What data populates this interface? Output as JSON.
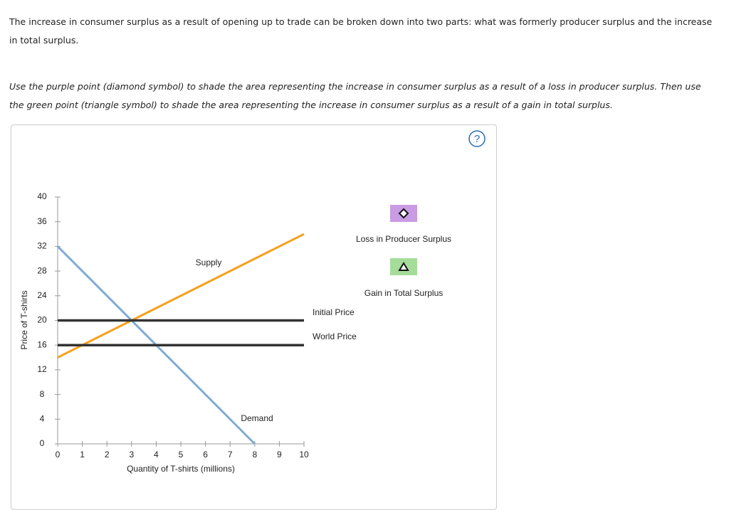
{
  "instructions": {
    "paragraph_1": "The increase in consumer surplus as a result of opening up to trade can be broken down into two parts: what was formerly producer surplus and the increase in total surplus.",
    "paragraph_2": "Use the purple point (diamond symbol) to shade the area representing the increase in consumer surplus as a result of a loss in producer surplus. Then use the green point (triangle symbol) to shade the area representing the increase in consumer surplus as a result of a gain in total surplus."
  },
  "help_icon": "?",
  "tools": [
    {
      "label": "Loss in Producer Surplus",
      "color": "#c99be3"
    },
    {
      "label": "Gain in Total Surplus",
      "color": "#a6dc9a"
    }
  ],
  "chart_data": {
    "type": "line",
    "x_label": "Quantity of T-shirts (millions)",
    "y_label": "Price of T-shirts",
    "xlim": [
      0,
      10
    ],
    "ylim": [
      0,
      40
    ],
    "xticks": [
      0,
      1,
      2,
      3,
      4,
      5,
      6,
      7,
      8,
      9,
      10
    ],
    "yticks": [
      0,
      4,
      8,
      12,
      16,
      20,
      24,
      28,
      32,
      36,
      40
    ],
    "grid": false,
    "series": [
      {
        "name": "Supply",
        "color": "#f7a01c",
        "x": [
          0,
          10
        ],
        "values": [
          14,
          34
        ]
      },
      {
        "name": "Demand",
        "color": "#7fabd3",
        "x": [
          0,
          8
        ],
        "values": [
          32,
          0
        ]
      },
      {
        "name": "Initial Price",
        "color": "#333333",
        "x": [
          0,
          10
        ],
        "values": [
          20,
          20
        ]
      },
      {
        "name": "World Price",
        "color": "#333333",
        "x": [
          0,
          10
        ],
        "values": [
          16,
          16
        ]
      }
    ]
  }
}
